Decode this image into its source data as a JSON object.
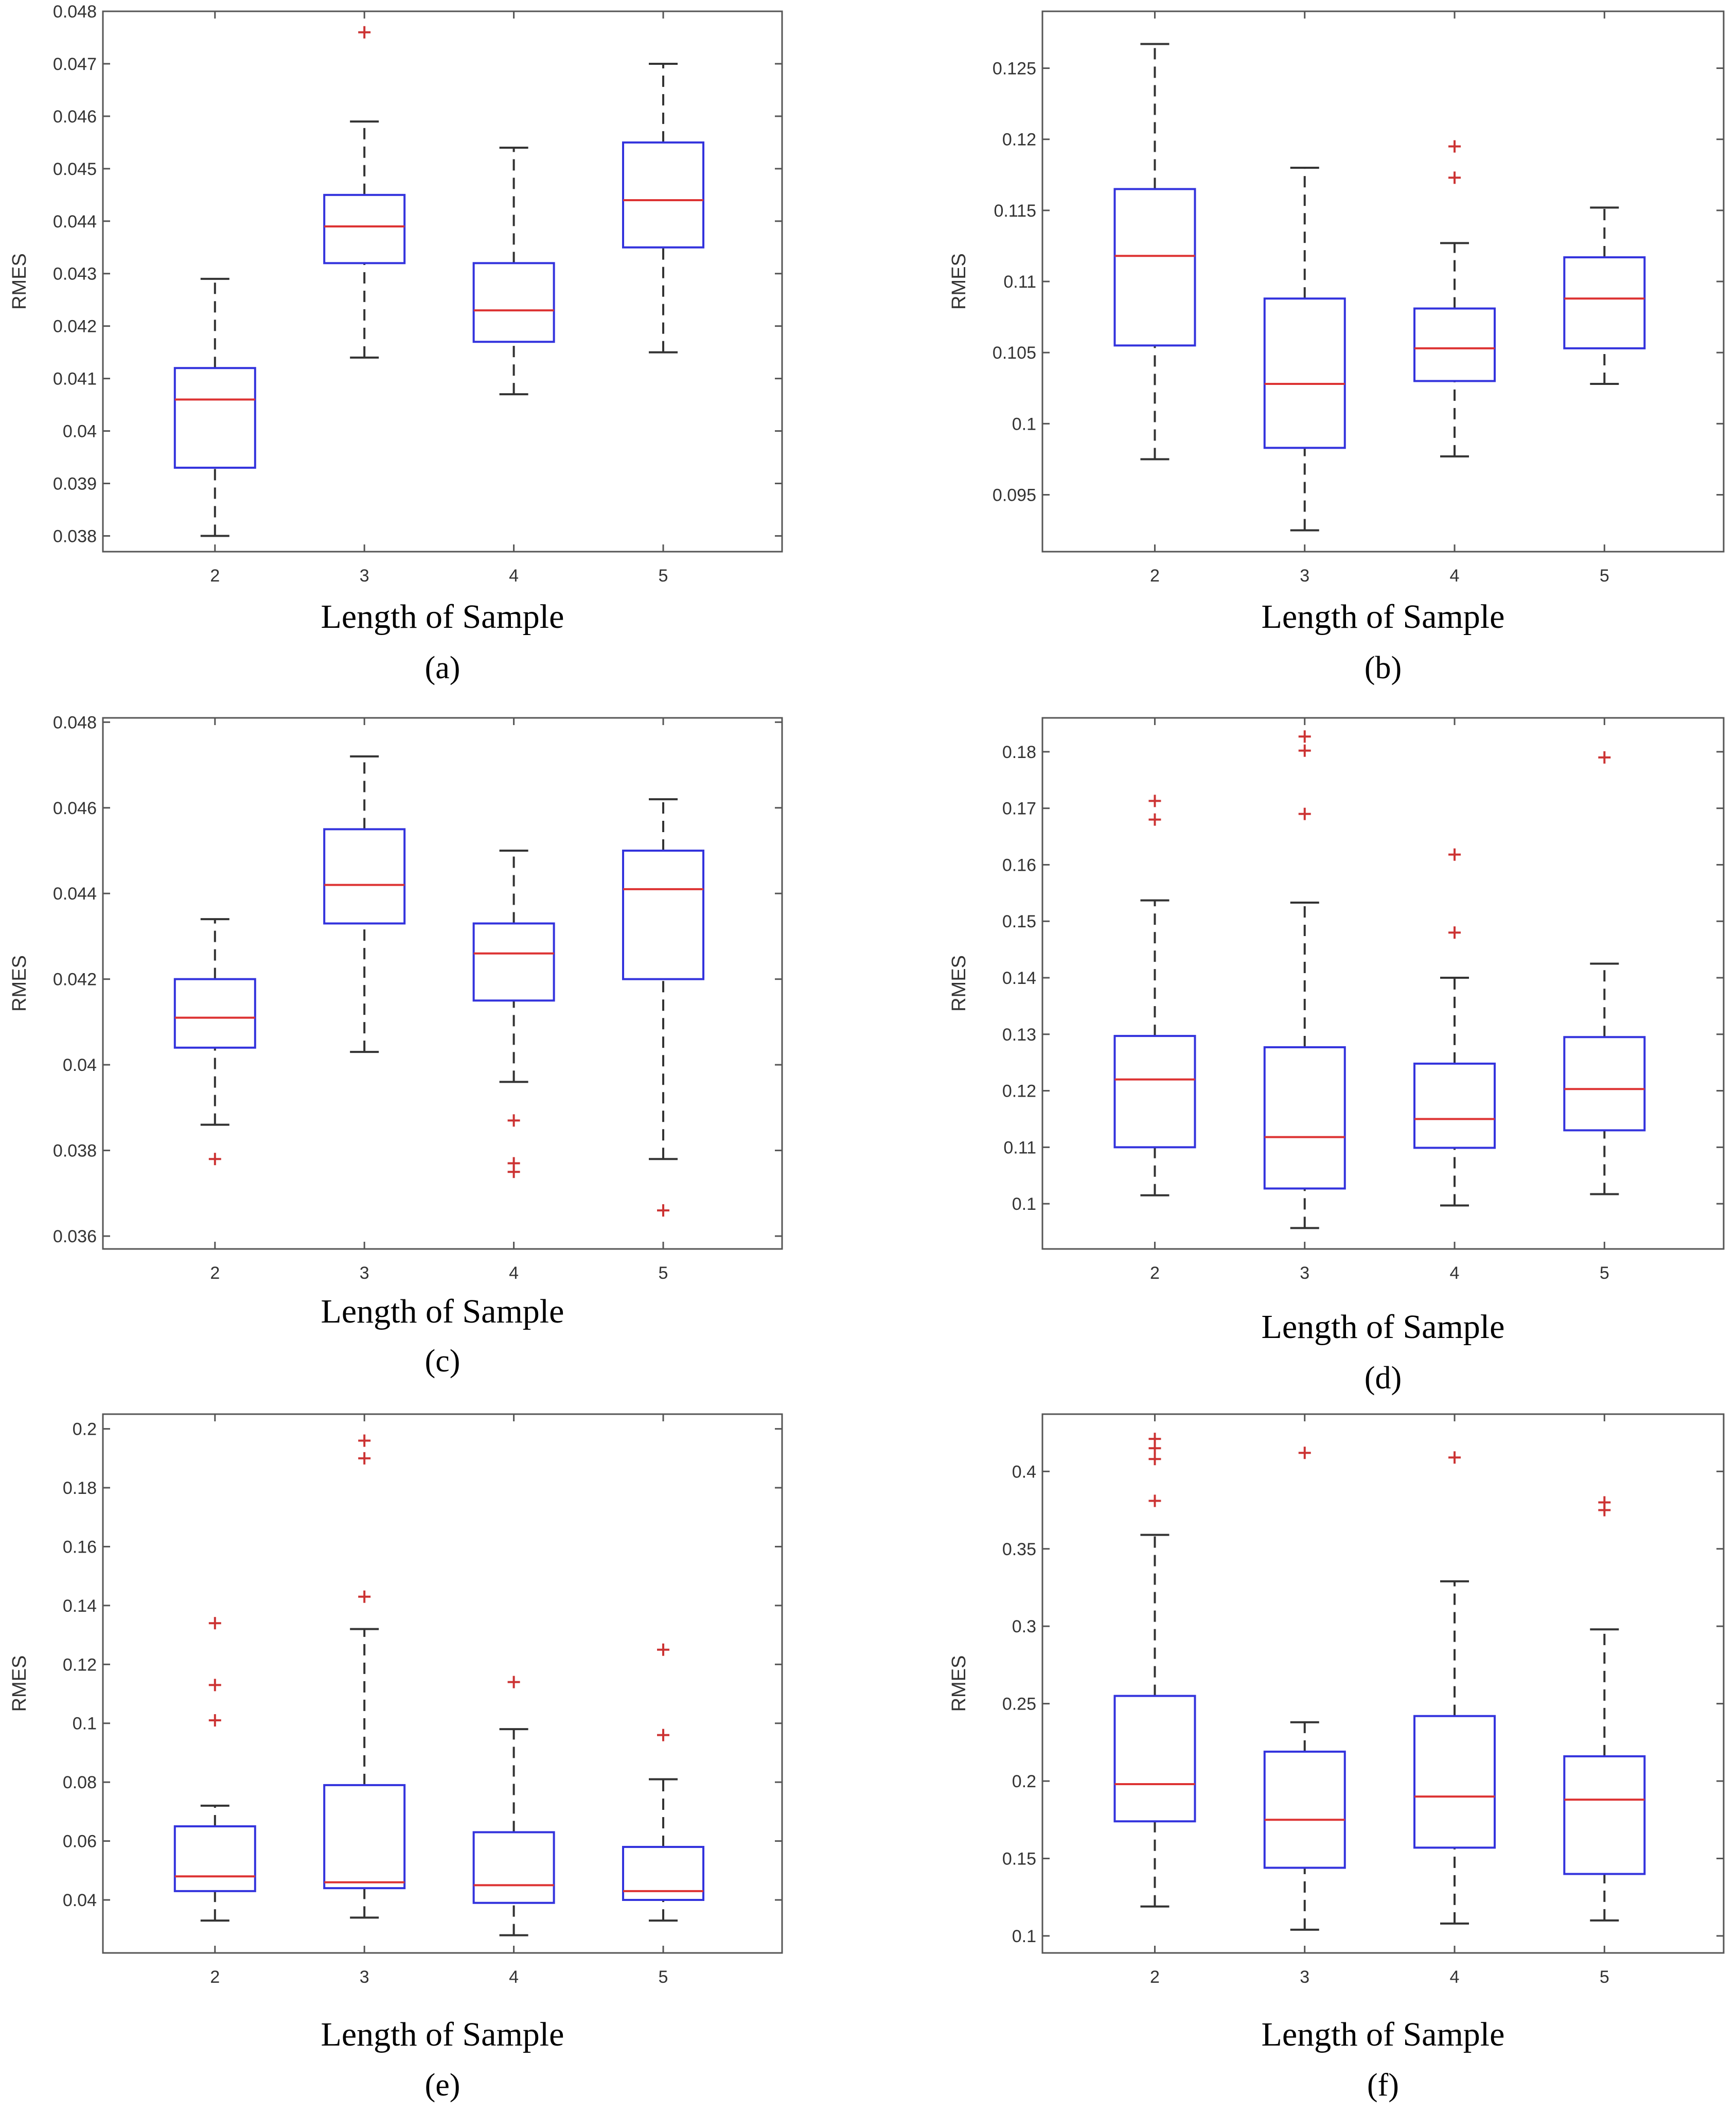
{
  "colors": {
    "box": "#3333dd",
    "median": "#dd3333",
    "whisker": "#333333",
    "outlier": "#cc3333",
    "axes": "#555555"
  },
  "chart_data": [
    {
      "type": "boxplot",
      "caption": "(a)",
      "xlabel": "Length of Sample",
      "ylabel": "RMES",
      "categories": [
        "2",
        "3",
        "4",
        "5"
      ],
      "ylim": [
        0.0377,
        0.048
      ],
      "yticks": [
        0.038,
        0.039,
        0.04,
        0.041,
        0.042,
        0.043,
        0.044,
        0.045,
        0.046,
        0.047,
        0.048
      ],
      "ytick_labels": [
        "0.038",
        "0.039",
        "0.04",
        "0.041",
        "0.042",
        "0.043",
        "0.044",
        "0.045",
        "0.046",
        "0.047",
        "0.048"
      ],
      "boxes": [
        {
          "low": 0.038,
          "q1": 0.0393,
          "median": 0.0406,
          "q3": 0.0412,
          "high": 0.0429,
          "outliers": []
        },
        {
          "low": 0.0414,
          "q1": 0.0432,
          "median": 0.0439,
          "q3": 0.0445,
          "high": 0.0459,
          "outliers": [
            0.0476
          ]
        },
        {
          "low": 0.0407,
          "q1": 0.0417,
          "median": 0.0423,
          "q3": 0.0432,
          "high": 0.0454,
          "outliers": []
        },
        {
          "low": 0.0415,
          "q1": 0.0435,
          "median": 0.0444,
          "q3": 0.0455,
          "high": 0.047,
          "outliers": []
        }
      ]
    },
    {
      "type": "boxplot",
      "caption": "(b)",
      "xlabel": "Length of Sample",
      "ylabel": "RMES",
      "categories": [
        "2",
        "3",
        "4",
        "5"
      ],
      "ylim": [
        0.091,
        0.129
      ],
      "yticks": [
        0.095,
        0.1,
        0.105,
        0.11,
        0.115,
        0.12,
        0.125
      ],
      "ytick_labels": [
        "0.095",
        "0.1",
        "0.105",
        "0.11",
        "0.115",
        "0.12",
        "0.125"
      ],
      "boxes": [
        {
          "low": 0.0975,
          "q1": 0.1055,
          "median": 0.1118,
          "q3": 0.1165,
          "high": 0.1267,
          "outliers": []
        },
        {
          "low": 0.0925,
          "q1": 0.0983,
          "median": 0.1028,
          "q3": 0.1088,
          "high": 0.118,
          "outliers": []
        },
        {
          "low": 0.0977,
          "q1": 0.103,
          "median": 0.1053,
          "q3": 0.1081,
          "high": 0.1127,
          "outliers": [
            0.1173,
            0.1195
          ]
        },
        {
          "low": 0.1028,
          "q1": 0.1053,
          "median": 0.1088,
          "q3": 0.1117,
          "high": 0.1152,
          "outliers": []
        }
      ]
    },
    {
      "type": "boxplot",
      "caption": "(c)",
      "xlabel": "Length of Sample",
      "ylabel": "RMES",
      "categories": [
        "2",
        "3",
        "4",
        "5"
      ],
      "ylim": [
        0.0357,
        0.0481
      ],
      "yticks": [
        0.036,
        0.038,
        0.04,
        0.042,
        0.044,
        0.046,
        0.048
      ],
      "ytick_labels": [
        "0.036",
        "0.038",
        "0.04",
        "0.042",
        "0.044",
        "0.046",
        "0.048"
      ],
      "boxes": [
        {
          "low": 0.0386,
          "q1": 0.0404,
          "median": 0.0411,
          "q3": 0.042,
          "high": 0.0434,
          "outliers": [
            0.0378
          ]
        },
        {
          "low": 0.0403,
          "q1": 0.0433,
          "median": 0.0442,
          "q3": 0.0455,
          "high": 0.0472,
          "outliers": []
        },
        {
          "low": 0.0396,
          "q1": 0.0415,
          "median": 0.0426,
          "q3": 0.0433,
          "high": 0.045,
          "outliers": [
            0.0375,
            0.0377,
            0.0387
          ]
        },
        {
          "low": 0.0378,
          "q1": 0.042,
          "median": 0.0441,
          "q3": 0.045,
          "high": 0.0462,
          "outliers": [
            0.0366
          ]
        }
      ]
    },
    {
      "type": "boxplot",
      "caption": "(d)",
      "xlabel": "Length of Sample",
      "ylabel": "RMES",
      "categories": [
        "2",
        "3",
        "4",
        "5"
      ],
      "ylim": [
        0.092,
        0.186
      ],
      "yticks": [
        0.1,
        0.11,
        0.12,
        0.13,
        0.14,
        0.15,
        0.16,
        0.17,
        0.18
      ],
      "ytick_labels": [
        "0.1",
        "0.11",
        "0.12",
        "0.13",
        "0.14",
        "0.15",
        "0.16",
        "0.17",
        "0.18"
      ],
      "boxes": [
        {
          "low": 0.1015,
          "q1": 0.11,
          "median": 0.122,
          "q3": 0.1297,
          "high": 0.1537,
          "outliers": [
            0.168,
            0.1713
          ]
        },
        {
          "low": 0.0957,
          "q1": 0.1027,
          "median": 0.1118,
          "q3": 0.1277,
          "high": 0.1533,
          "outliers": [
            0.169,
            0.1802,
            0.1827
          ]
        },
        {
          "low": 0.0997,
          "q1": 0.1099,
          "median": 0.115,
          "q3": 0.1248,
          "high": 0.14,
          "outliers": [
            0.148,
            0.1618
          ]
        },
        {
          "low": 0.1017,
          "q1": 0.113,
          "median": 0.1203,
          "q3": 0.1295,
          "high": 0.1425,
          "outliers": [
            0.179
          ]
        }
      ]
    },
    {
      "type": "boxplot",
      "caption": "(e)",
      "xlabel": "Length of Sample",
      "ylabel": "RMES",
      "categories": [
        "2",
        "3",
        "4",
        "5"
      ],
      "ylim": [
        0.022,
        0.205
      ],
      "yticks": [
        0.04,
        0.06,
        0.08,
        0.1,
        0.12,
        0.14,
        0.16,
        0.18,
        0.2
      ],
      "ytick_labels": [
        "0.04",
        "0.06",
        "0.08",
        "0.1",
        "0.12",
        "0.14",
        "0.16",
        "0.18",
        "0.2"
      ],
      "boxes": [
        {
          "low": 0.033,
          "q1": 0.043,
          "median": 0.048,
          "q3": 0.065,
          "high": 0.072,
          "outliers": [
            0.101,
            0.113,
            0.134
          ]
        },
        {
          "low": 0.034,
          "q1": 0.044,
          "median": 0.046,
          "q3": 0.079,
          "high": 0.132,
          "outliers": [
            0.143,
            0.19,
            0.196
          ]
        },
        {
          "low": 0.028,
          "q1": 0.039,
          "median": 0.045,
          "q3": 0.063,
          "high": 0.098,
          "outliers": [
            0.114
          ]
        },
        {
          "low": 0.033,
          "q1": 0.04,
          "median": 0.043,
          "q3": 0.058,
          "high": 0.081,
          "outliers": [
            0.096,
            0.125
          ]
        }
      ]
    },
    {
      "type": "boxplot",
      "caption": "(f)",
      "xlabel": "Length of Sample",
      "ylabel": "RMES",
      "categories": [
        "2",
        "3",
        "4",
        "5"
      ],
      "ylim": [
        0.089,
        0.437
      ],
      "yticks": [
        0.1,
        0.15,
        0.2,
        0.25,
        0.3,
        0.35,
        0.4
      ],
      "ytick_labels": [
        "0.1",
        "0.15",
        "0.2",
        "0.25",
        "0.3",
        "0.35",
        "0.4"
      ],
      "boxes": [
        {
          "low": 0.119,
          "q1": 0.174,
          "median": 0.198,
          "q3": 0.255,
          "high": 0.359,
          "outliers": [
            0.381,
            0.408,
            0.415,
            0.421
          ]
        },
        {
          "low": 0.104,
          "q1": 0.144,
          "median": 0.175,
          "q3": 0.219,
          "high": 0.238,
          "outliers": [
            0.412
          ]
        },
        {
          "low": 0.108,
          "q1": 0.157,
          "median": 0.19,
          "q3": 0.242,
          "high": 0.329,
          "outliers": [
            0.409
          ]
        },
        {
          "low": 0.11,
          "q1": 0.14,
          "median": 0.188,
          "q3": 0.216,
          "high": 0.298,
          "outliers": [
            0.375,
            0.38
          ]
        }
      ]
    }
  ]
}
